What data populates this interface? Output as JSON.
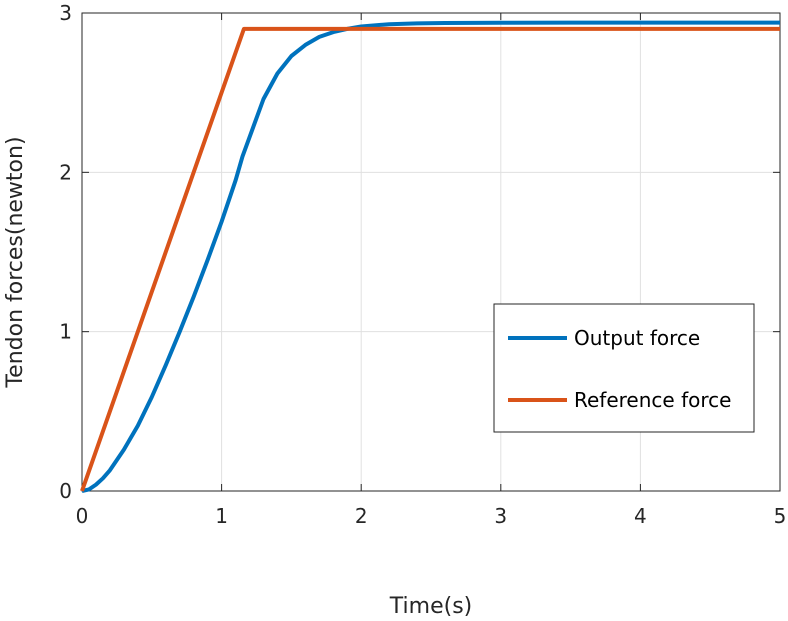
{
  "chart_data": {
    "type": "line",
    "xlabel": "Time(s)",
    "ylabel": "Tendon forces(newton)",
    "xlim": [
      0,
      5
    ],
    "ylim": [
      0,
      3
    ],
    "xticks": [
      "0",
      "1",
      "2",
      "3",
      "4",
      "5"
    ],
    "yticks": [
      "0",
      "1",
      "2",
      "3"
    ],
    "grid": true,
    "legend_position": "center-right",
    "series": [
      {
        "name": "Output force",
        "color": "#0072BD",
        "x": [
          0,
          0.05,
          0.1,
          0.15,
          0.2,
          0.3,
          0.4,
          0.5,
          0.6,
          0.7,
          0.8,
          0.9,
          1.0,
          1.1,
          1.15,
          1.2,
          1.3,
          1.4,
          1.5,
          1.6,
          1.7,
          1.8,
          1.9,
          2.0,
          2.2,
          2.4,
          2.6,
          2.8,
          3.0,
          3.5,
          4.0,
          4.5,
          5.0
        ],
        "y": [
          0,
          0.01,
          0.04,
          0.08,
          0.13,
          0.26,
          0.41,
          0.59,
          0.79,
          1.0,
          1.22,
          1.45,
          1.69,
          1.95,
          2.1,
          2.22,
          2.46,
          2.62,
          2.73,
          2.8,
          2.85,
          2.88,
          2.9,
          2.915,
          2.93,
          2.935,
          2.937,
          2.938,
          2.939,
          2.94,
          2.94,
          2.94,
          2.94
        ]
      },
      {
        "name": "Reference force",
        "color": "#D95319",
        "x": [
          0,
          1.16,
          5
        ],
        "y": [
          0,
          2.9,
          2.9
        ]
      }
    ]
  }
}
